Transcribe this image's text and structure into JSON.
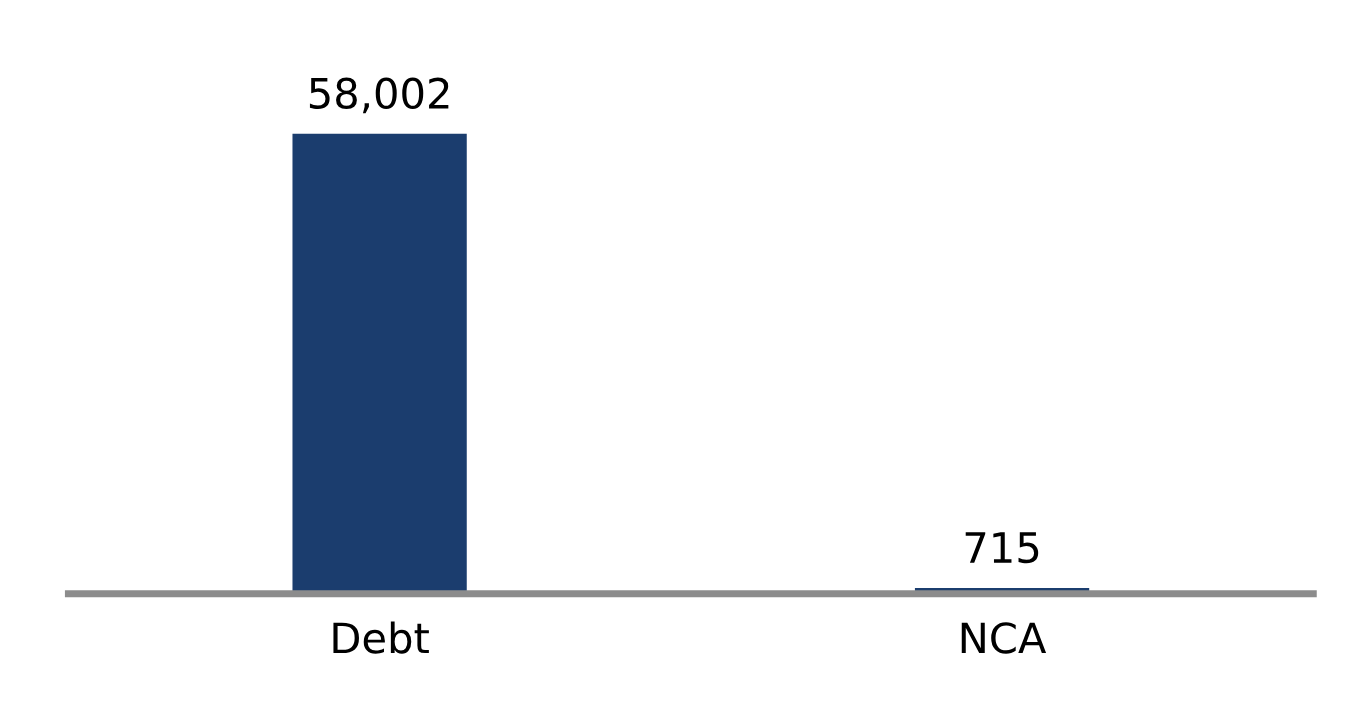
{
  "chart_data": {
    "type": "bar",
    "categories": [
      "Debt",
      "NCA"
    ],
    "values": [
      58002,
      715
    ],
    "value_labels": [
      "58,002",
      "715"
    ],
    "color": "#1b3d6e",
    "grid": false,
    "tick_labels": "x"
  }
}
